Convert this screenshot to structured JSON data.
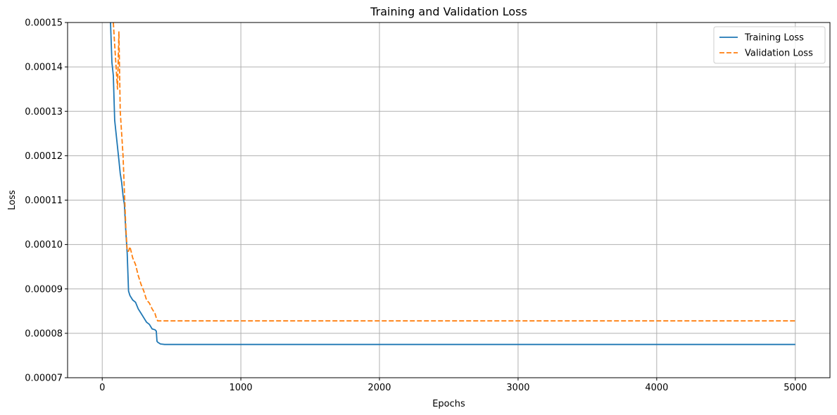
{
  "chart_data": {
    "type": "line",
    "title": "Training and Validation Loss",
    "xlabel": "Epochs",
    "ylabel": "Loss",
    "xlim": [
      -250,
      5250
    ],
    "ylim": [
      7e-05,
      0.00015
    ],
    "xticks": [
      0,
      1000,
      2000,
      3000,
      4000,
      5000
    ],
    "xtick_labels": [
      "0",
      "1000",
      "2000",
      "3000",
      "4000",
      "5000"
    ],
    "yticks": [
      7e-05,
      8e-05,
      9e-05,
      0.0001,
      0.00011,
      0.00012,
      0.00013,
      0.00014,
      0.00015
    ],
    "ytick_labels": [
      "0.00007",
      "0.00008",
      "0.00009",
      "0.00010",
      "0.00011",
      "0.00012",
      "0.00013",
      "0.00014",
      "0.00015"
    ],
    "grid": true,
    "legend_position": "top-right",
    "series": [
      {
        "name": "Training Loss",
        "color": "#1f77b4",
        "dash": "solid",
        "x": [
          60,
          70,
          80,
          90,
          100,
          110,
          120,
          130,
          140,
          150,
          160,
          170,
          180,
          190,
          200,
          220,
          240,
          260,
          280,
          300,
          320,
          340,
          360,
          380,
          390,
          395,
          400,
          420,
          450,
          500,
          1000,
          2000,
          3000,
          4000,
          5000
        ],
        "y": [
          0.00015,
          0.000141,
          0.000138,
          0.000128,
          0.000125,
          0.000122,
          0.000119,
          0.000116,
          0.000114,
          0.000111,
          0.000109,
          0.000103,
          9.8e-05,
          8.95e-05,
          8.85e-05,
          8.75e-05,
          8.7e-05,
          8.55e-05,
          8.45e-05,
          8.35e-05,
          8.25e-05,
          8.2e-05,
          8.1e-05,
          8.08e-05,
          8.05e-05,
          7.82e-05,
          7.8e-05,
          7.76e-05,
          7.75e-05,
          7.75e-05,
          7.75e-05,
          7.75e-05,
          7.75e-05,
          7.75e-05,
          7.75e-05
        ]
      },
      {
        "name": "Validation Loss",
        "color": "#ff7f0e",
        "dash": "dashed",
        "x": [
          80,
          90,
          100,
          110,
          120,
          130,
          140,
          150,
          160,
          170,
          180,
          190,
          200,
          220,
          240,
          260,
          280,
          300,
          320,
          340,
          360,
          380,
          390,
          400,
          450,
          500,
          1000,
          2000,
          3000,
          4000,
          5000
        ],
        "y": [
          0.00015,
          0.000145,
          0.00014,
          0.000135,
          0.000148,
          0.00013,
          0.000125,
          0.00012,
          0.000112,
          0.000104,
          9.85e-05,
          9.85e-05,
          9.95e-05,
          9.7e-05,
          9.55e-05,
          9.3e-05,
          9.1e-05,
          8.95e-05,
          8.75e-05,
          8.68e-05,
          8.55e-05,
          8.45e-05,
          8.35e-05,
          8.28e-05,
          8.28e-05,
          8.28e-05,
          8.28e-05,
          8.28e-05,
          8.28e-05,
          8.28e-05,
          8.28e-05
        ]
      }
    ]
  }
}
